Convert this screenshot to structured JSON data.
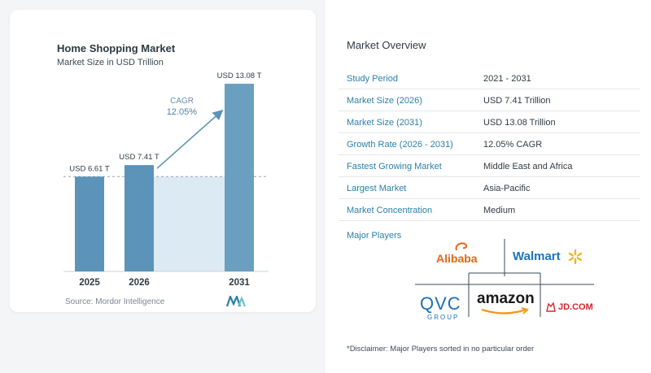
{
  "chart": {
    "title": "Home Shopping Market",
    "subtitle": "Market Size in USD Trillion",
    "source": "Source:  Mordor Intelligence",
    "cagr_label": "CAGR",
    "cagr_value": "12.05%"
  },
  "chart_data": {
    "type": "bar",
    "categories": [
      "2025",
      "2026",
      "2031"
    ],
    "values": [
      6.61,
      7.41,
      13.08
    ],
    "data_labels": [
      "USD 6.61 T",
      "USD 7.41 T",
      "USD 13.08 T"
    ],
    "title": "Home Shopping Market",
    "subtitle": "Market Size in USD Trillion",
    "ylim": [
      0,
      14.5
    ],
    "grid": false,
    "annotation": "CAGR 12.05%",
    "colors": {
      "bar": "#5b94b8",
      "bar_last": "#6a9fc0",
      "area": "#dceaf3",
      "arrow": "#5b94b8"
    }
  },
  "overview": {
    "title": "Market Overview",
    "rows": [
      {
        "label": "Study Period",
        "value": "2021 - 2031"
      },
      {
        "label": "Market Size (2026)",
        "value": "USD 7.41 Trillion"
      },
      {
        "label": "Market Size (2031)",
        "value": "USD 13.08 Trillion"
      },
      {
        "label": "Growth Rate (2026 - 2031)",
        "value": "12.05% CAGR"
      },
      {
        "label": "Fastest Growing Market",
        "value": "Middle East and Africa"
      },
      {
        "label": "Largest Market",
        "value": "Asia-Pacific"
      },
      {
        "label": "Market Concentration",
        "value": "Medium"
      }
    ],
    "major_players_label": "Major Players",
    "players": {
      "alibaba": "Alibaba",
      "walmart": "Walmart",
      "qvc": "QVC",
      "qvc_sub": "GROUP",
      "amazon": "amazon",
      "jd": "JD.COM"
    },
    "disclaimer": "*Disclaimer: Major Players sorted in no particular order"
  },
  "colors": {
    "accent": "#2b7fa8",
    "bar": "#5b94b8"
  }
}
